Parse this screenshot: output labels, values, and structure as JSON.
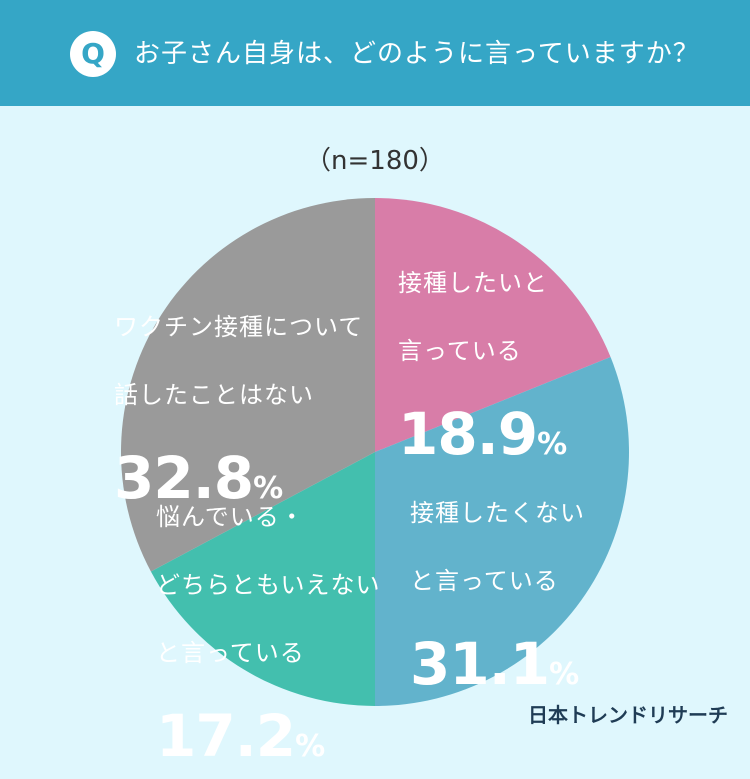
{
  "header": {
    "badge": "Q",
    "question": "お子さん自身は、どのように言っていますか？"
  },
  "sample_size": "（n=180）",
  "chart_data": {
    "type": "pie",
    "start": "12 o'clock, clockwise",
    "slices": [
      {
        "label_lines": [
          "接種したいと",
          "言っている"
        ],
        "value": 18.9,
        "pct_num": "18.9",
        "unit": "%",
        "color": "#d87da8"
      },
      {
        "label_lines": [
          "接種したくない",
          "と言っている"
        ],
        "value": 31.1,
        "pct_num": "31.1",
        "unit": "%",
        "color": "#62b3cc"
      },
      {
        "label_lines": [
          "悩んでいる・",
          "どちらともいえない",
          "と言っている"
        ],
        "value": 17.2,
        "pct_num": "17.2",
        "unit": "%",
        "color": "#43bfae"
      },
      {
        "label_lines": [
          "ワクチン接種について",
          "話したことはない"
        ],
        "value": 32.8,
        "pct_num": "32.8",
        "unit": "%",
        "color": "#9a9a9a"
      }
    ]
  },
  "logo": "日本トレンドリサーチ"
}
